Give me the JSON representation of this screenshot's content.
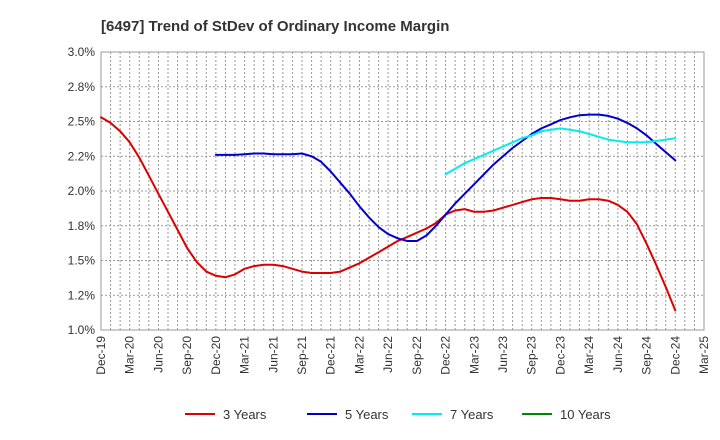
{
  "chart_data": {
    "type": "line",
    "title": "[6497]  Trend of StDev of Ordinary Income Margin",
    "xlabel": "",
    "ylabel": "",
    "x_ticks": [
      "Dec-19",
      "Mar-20",
      "Jun-20",
      "Sep-20",
      "Dec-20",
      "Mar-21",
      "Jun-21",
      "Sep-21",
      "Dec-21",
      "Mar-22",
      "Jun-22",
      "Sep-22",
      "Dec-22",
      "Mar-23",
      "Jun-23",
      "Sep-23",
      "Dec-23",
      "Mar-24",
      "Jun-24",
      "Sep-24",
      "Dec-24",
      "Mar-25"
    ],
    "y_ticks": [
      "3.0%",
      "2.8%",
      "2.5%",
      "2.2%",
      "2.0%",
      "1.8%",
      "1.5%",
      "1.2%",
      "1.0%"
    ],
    "ylim": [
      1.0,
      3.0
    ],
    "grid": true,
    "legend_position": "bottom",
    "series": [
      {
        "name": "3 Years",
        "color": "#dd0000",
        "x": [
          "2019-12",
          "2020-01",
          "2020-02",
          "2020-03",
          "2020-04",
          "2020-05",
          "2020-06",
          "2020-07",
          "2020-08",
          "2020-09",
          "2020-10",
          "2020-11",
          "2020-12",
          "2021-01",
          "2021-02",
          "2021-03",
          "2021-04",
          "2021-05",
          "2021-06",
          "2021-07",
          "2021-08",
          "2021-09",
          "2021-10",
          "2021-11",
          "2021-12",
          "2022-01",
          "2022-02",
          "2022-03",
          "2022-04",
          "2022-05",
          "2022-06",
          "2022-07",
          "2022-08",
          "2022-09",
          "2022-10",
          "2022-11",
          "2022-12",
          "2023-01",
          "2023-02",
          "2023-03",
          "2023-04",
          "2023-05",
          "2023-06",
          "2023-07",
          "2023-08",
          "2023-09",
          "2023-10",
          "2023-11",
          "2023-12",
          "2024-01",
          "2024-02",
          "2024-03",
          "2024-04",
          "2024-05",
          "2024-06",
          "2024-07",
          "2024-08",
          "2024-09",
          "2024-10",
          "2024-11",
          "2024-12"
        ],
        "values": [
          2.53,
          2.49,
          2.43,
          2.35,
          2.24,
          2.11,
          1.98,
          1.85,
          1.72,
          1.59,
          1.49,
          1.42,
          1.39,
          1.38,
          1.4,
          1.44,
          1.46,
          1.47,
          1.47,
          1.46,
          1.44,
          1.42,
          1.41,
          1.41,
          1.41,
          1.42,
          1.45,
          1.48,
          1.52,
          1.56,
          1.6,
          1.64,
          1.67,
          1.7,
          1.73,
          1.77,
          1.83,
          1.86,
          1.87,
          1.85,
          1.85,
          1.86,
          1.88,
          1.9,
          1.92,
          1.94,
          1.95,
          1.95,
          1.94,
          1.93,
          1.93,
          1.94,
          1.94,
          1.93,
          1.9,
          1.85,
          1.76,
          1.62,
          1.47,
          1.31,
          1.14
        ]
      },
      {
        "name": "5 Years",
        "color": "#0000cc",
        "x": [
          "2020-12",
          "2021-01",
          "2021-02",
          "2021-03",
          "2021-04",
          "2021-05",
          "2021-06",
          "2021-07",
          "2021-08",
          "2021-09",
          "2021-10",
          "2021-11",
          "2021-12",
          "2022-01",
          "2022-02",
          "2022-03",
          "2022-04",
          "2022-05",
          "2022-06",
          "2022-07",
          "2022-08",
          "2022-09",
          "2022-10",
          "2022-11",
          "2022-12",
          "2023-01",
          "2023-02",
          "2023-03",
          "2023-04",
          "2023-05",
          "2023-06",
          "2023-07",
          "2023-08",
          "2023-09",
          "2023-10",
          "2023-11",
          "2023-12",
          "2024-01",
          "2024-02",
          "2024-03",
          "2024-04",
          "2024-05",
          "2024-06",
          "2024-07",
          "2024-08",
          "2024-09",
          "2024-10",
          "2024-11",
          "2024-12"
        ],
        "values": [
          2.26,
          2.26,
          2.26,
          2.265,
          2.27,
          2.27,
          2.265,
          2.265,
          2.265,
          2.27,
          2.25,
          2.21,
          2.14,
          2.06,
          1.98,
          1.89,
          1.81,
          1.74,
          1.69,
          1.66,
          1.64,
          1.64,
          1.68,
          1.75,
          1.83,
          1.91,
          1.98,
          2.05,
          2.12,
          2.19,
          2.25,
          2.31,
          2.36,
          2.41,
          2.45,
          2.48,
          2.51,
          2.53,
          2.545,
          2.55,
          2.55,
          2.54,
          2.52,
          2.49,
          2.45,
          2.4,
          2.34,
          2.28,
          2.22
        ]
      },
      {
        "name": "7 Years",
        "color": "#00eeee",
        "x": [
          "2022-12",
          "2023-01",
          "2023-02",
          "2023-03",
          "2023-04",
          "2023-05",
          "2023-06",
          "2023-07",
          "2023-08",
          "2023-09",
          "2023-10",
          "2023-11",
          "2023-12",
          "2024-01",
          "2024-02",
          "2024-03",
          "2024-04",
          "2024-05",
          "2024-06",
          "2024-07",
          "2024-08",
          "2024-09",
          "2024-10",
          "2024-11",
          "2024-12"
        ],
        "values": [
          2.12,
          2.16,
          2.2,
          2.23,
          2.26,
          2.29,
          2.32,
          2.35,
          2.38,
          2.4,
          2.43,
          2.44,
          2.45,
          2.44,
          2.43,
          2.41,
          2.39,
          2.37,
          2.36,
          2.35,
          2.35,
          2.35,
          2.36,
          2.37,
          2.38
        ]
      },
      {
        "name": "10 Years",
        "color": "#008800",
        "x": [],
        "values": []
      }
    ]
  }
}
